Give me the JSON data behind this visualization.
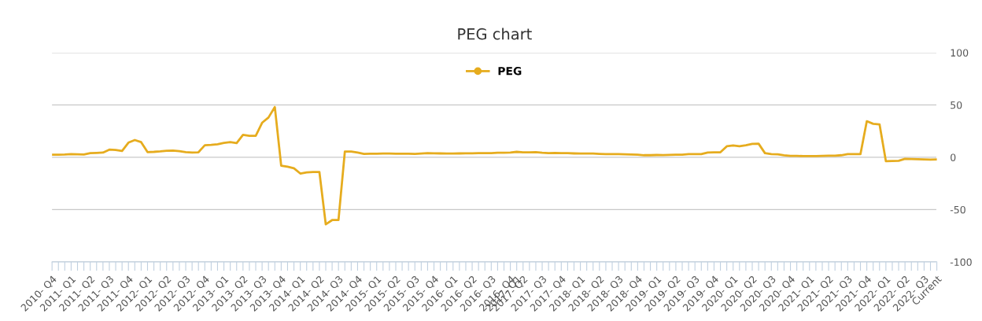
{
  "chart_data": {
    "type": "line",
    "title": "PEG chart",
    "categories": [
      "2010- Q4",
      null,
      null,
      "2011- Q1",
      null,
      null,
      "2011- Q2",
      null,
      null,
      "2011- Q3",
      null,
      null,
      "2011- Q4",
      null,
      null,
      "2012- Q1",
      null,
      null,
      "2012- Q2",
      null,
      null,
      "2012- Q3",
      null,
      null,
      "2012- Q4",
      null,
      null,
      "2013- Q1",
      null,
      null,
      "2013- Q2",
      null,
      null,
      "2013- Q3",
      null,
      null,
      "2013- Q4",
      null,
      null,
      "2014- Q1",
      null,
      null,
      "2014- Q2",
      null,
      null,
      "2014- Q3",
      null,
      null,
      "2014- Q4",
      null,
      null,
      "2015- Q1",
      null,
      null,
      "2015- Q2",
      null,
      null,
      "2015- Q3",
      null,
      null,
      "2015- Q4",
      null,
      null,
      "2016- Q1",
      null,
      null,
      "2016- Q2",
      null,
      null,
      "2016- Q3",
      null,
      null,
      "2016- Q4",
      "2017- Q1",
      "2017- Q2",
      null,
      null,
      "2017- Q3",
      null,
      null,
      "2017- Q4",
      null,
      null,
      "2018- Q1",
      null,
      null,
      "2018- Q2",
      null,
      null,
      "2018- Q3",
      null,
      null,
      "2018- Q4",
      null,
      null,
      "2019- Q1",
      null,
      null,
      "2019- Q2",
      null,
      null,
      "2019- Q3",
      null,
      null,
      "2019- Q4",
      null,
      null,
      "2020- Q1",
      null,
      null,
      "2020- Q2",
      null,
      null,
      "2020- Q3",
      null,
      null,
      "2020- Q4",
      null,
      null,
      "2021- Q1",
      null,
      null,
      "2021- Q2",
      null,
      null,
      "2021- Q3",
      null,
      null,
      "2021- Q4",
      null,
      null,
      "2022- Q1",
      null,
      null,
      "2022- Q2",
      null,
      null,
      "2022- Q3",
      null,
      "Current"
    ],
    "series": [
      {
        "name": "PEG",
        "color": "#e6ac1e",
        "values": [
          2.5,
          2.5,
          2.6,
          3,
          2.8,
          2.6,
          4,
          4.2,
          4.5,
          7.3,
          7,
          6,
          14,
          16.5,
          14.5,
          5,
          5.2,
          5.6,
          6.2,
          6.5,
          5.8,
          5,
          4.5,
          4.8,
          11.5,
          11.8,
          12.5,
          13.8,
          14.5,
          13.5,
          21.5,
          20.5,
          20.5,
          33,
          38,
          48,
          -8,
          -9,
          -10.5,
          -15.5,
          -14.5,
          -14,
          -14,
          -64,
          -60,
          -60,
          5.5,
          5.5,
          4.5,
          3.3,
          3.4,
          3.5,
          3.6,
          3.6,
          3.5,
          3.5,
          3.4,
          3.3,
          3.6,
          3.9,
          3.8,
          3.7,
          3.6,
          3.6,
          3.7,
          3.8,
          3.8,
          4.0,
          4.0,
          3.9,
          4.3,
          4.4,
          4.5,
          5.2,
          4.8,
          4.8,
          5.0,
          4.4,
          4.0,
          4.2,
          4.0,
          3.9,
          3.7,
          3.6,
          3.6,
          3.6,
          3.3,
          3.0,
          3.0,
          3.0,
          2.8,
          2.6,
          2.5,
          2,
          2,
          2.2,
          2.1,
          2.3,
          2.4,
          2.5,
          3,
          3,
          3,
          4.5,
          4.8,
          4.8,
          10.5,
          11.3,
          10.5,
          11.5,
          12.8,
          13,
          4,
          3,
          2.8,
          2,
          1.4,
          1.3,
          1.2,
          1.2,
          1.2,
          1.3,
          1.5,
          1.6,
          2,
          3,
          3,
          3,
          34.5,
          32,
          31.5,
          -3.8,
          -3.5,
          -3.3,
          -1.5,
          -1.6,
          -1.8,
          -2,
          -2.3,
          -2
        ]
      }
    ],
    "ylim": [
      -100,
      100
    ],
    "yticks": [
      -100,
      -50,
      0,
      50,
      100
    ],
    "grid": "y",
    "legend": "top",
    "line_style": "solid"
  }
}
